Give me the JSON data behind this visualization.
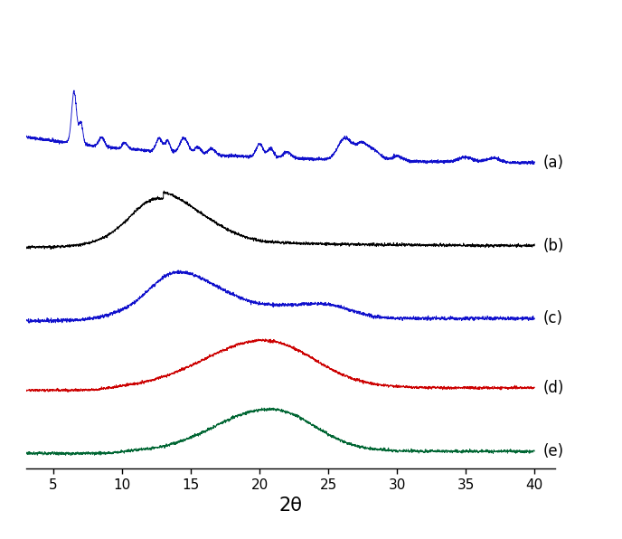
{
  "x_min": 3,
  "x_max": 40,
  "x_ticks": [
    5,
    10,
    15,
    20,
    25,
    30,
    35,
    40
  ],
  "xlabel": "2θ",
  "xlabel_fontsize": 15,
  "tick_fontsize": 11,
  "colors": {
    "a": "#1010CC",
    "b": "#000000",
    "c": "#1010CC",
    "d": "#CC0000",
    "e": "#006633"
  },
  "offsets": {
    "a": 1.1,
    "b": 0.78,
    "c": 0.5,
    "d": 0.24,
    "e": 0.0
  },
  "scales": {
    "a": 0.28,
    "b": 0.22,
    "c": 0.2,
    "d": 0.2,
    "e": 0.18
  },
  "labels": {
    "a": "(a)",
    "b": "(b)",
    "c": "(c)",
    "d": "(d)",
    "e": "(e)"
  },
  "label_fontsize": 12,
  "background_color": "#ffffff",
  "line_width": 0.65,
  "seed": 42
}
